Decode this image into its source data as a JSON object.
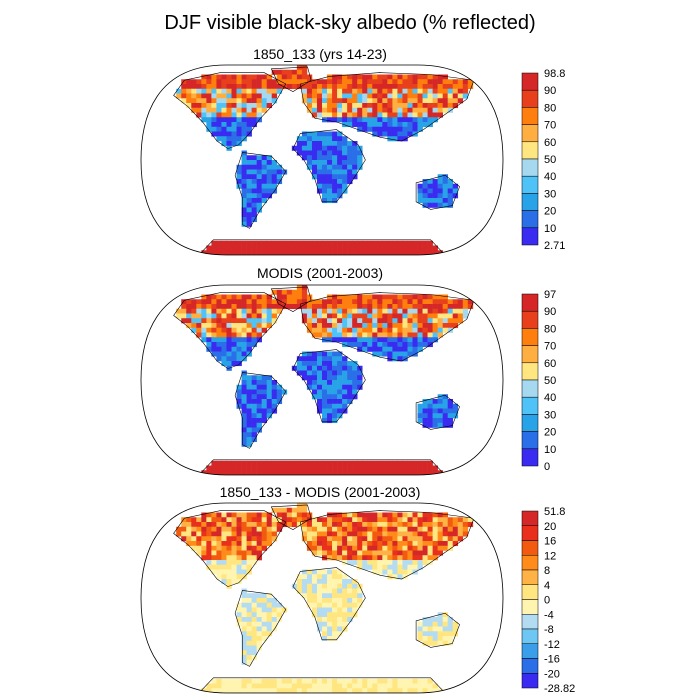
{
  "figure": {
    "title": "DJF visible black-sky albedo (% reflected)"
  },
  "panels": [
    {
      "title": "1850_133 (yrs 14-23)",
      "colorbar": {
        "labels": [
          "98.8",
          "90",
          "80",
          "70",
          "60",
          "50",
          "40",
          "30",
          "20",
          "10",
          "2.71"
        ],
        "colors": [
          "#d62728",
          "#e8401c",
          "#ff7f0e",
          "#ffae42",
          "#ffe680",
          "#a6d8f0",
          "#4fc3f7",
          "#29a3e8",
          "#2b6fe8",
          "#3a2bf0"
        ]
      }
    },
    {
      "title": "MODIS (2001-2003)",
      "colorbar": {
        "labels": [
          "97",
          "90",
          "80",
          "70",
          "60",
          "50",
          "40",
          "30",
          "20",
          "10",
          "0"
        ],
        "colors": [
          "#d62728",
          "#e8401c",
          "#ff7f0e",
          "#ffae42",
          "#ffe680",
          "#a6d8f0",
          "#4fc3f7",
          "#29a3e8",
          "#2b6fe8",
          "#3a2bf0"
        ]
      }
    },
    {
      "title": "1850_133 - MODIS (2001-2003)",
      "colorbar": {
        "labels": [
          "51.8",
          "20",
          "16",
          "12",
          "8",
          "4",
          "0",
          "-4",
          "-8",
          "-12",
          "-16",
          "-20",
          "-28.82"
        ],
        "colors": [
          "#d62728",
          "#e8301c",
          "#f25a10",
          "#ff8c1a",
          "#ffb347",
          "#ffe680",
          "#fff5b0",
          "#b3dcf2",
          "#6ec6f2",
          "#3a9ee8",
          "#2b6fe8",
          "#3a2bf0"
        ]
      }
    }
  ]
}
